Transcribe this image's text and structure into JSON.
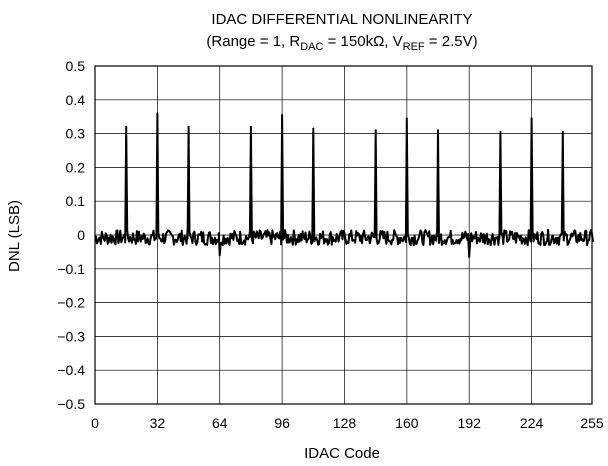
{
  "chart_data": {
    "type": "line",
    "title_line1": "IDAC DIFFERENTIAL NONLINEARITY",
    "title_line2": {
      "prefix": "(Range = 1, R",
      "sub1": "DAC",
      "mid": " = 150kΩ, V",
      "sub2": "REF",
      "suffix": " = 2.5V)"
    },
    "xlabel": "IDAC Code",
    "ylabel": "DNL (LSB)",
    "xlim": [
      0,
      255
    ],
    "ylim": [
      -0.5,
      0.5
    ],
    "x_ticks": [
      0,
      32,
      64,
      96,
      128,
      160,
      192,
      224,
      255
    ],
    "x_tick_labels": [
      "0",
      "32",
      "64",
      "96",
      "128",
      "160",
      "192",
      "224",
      "255"
    ],
    "y_ticks": [
      0.5,
      0.4,
      0.3,
      0.2,
      0.1,
      0,
      -0.1,
      -0.2,
      -0.3,
      -0.4,
      -0.5
    ],
    "y_tick_labels": [
      "0.5",
      "0.4",
      "0.3",
      "0.2",
      "0.1",
      "0",
      "−0.1",
      "−0.2",
      "−0.3",
      "−0.4",
      "−0.5"
    ],
    "grid": true,
    "line_color": "#000000",
    "series": [
      {
        "noise_band": [
          -0.03,
          0.015
        ],
        "spikes": [
          {
            "x": 16,
            "y": 0.32
          },
          {
            "x": 32,
            "y": 0.36
          },
          {
            "x": 48,
            "y": 0.32
          },
          {
            "x": 64,
            "y": -0.06
          },
          {
            "x": 80,
            "y": 0.32
          },
          {
            "x": 96,
            "y": 0.355
          },
          {
            "x": 112,
            "y": 0.315
          },
          {
            "x": 144,
            "y": 0.31
          },
          {
            "x": 160,
            "y": 0.345
          },
          {
            "x": 176,
            "y": 0.31
          },
          {
            "x": 192,
            "y": -0.065
          },
          {
            "x": 208,
            "y": 0.305
          },
          {
            "x": 224,
            "y": 0.345
          },
          {
            "x": 240,
            "y": 0.305
          }
        ]
      }
    ]
  }
}
